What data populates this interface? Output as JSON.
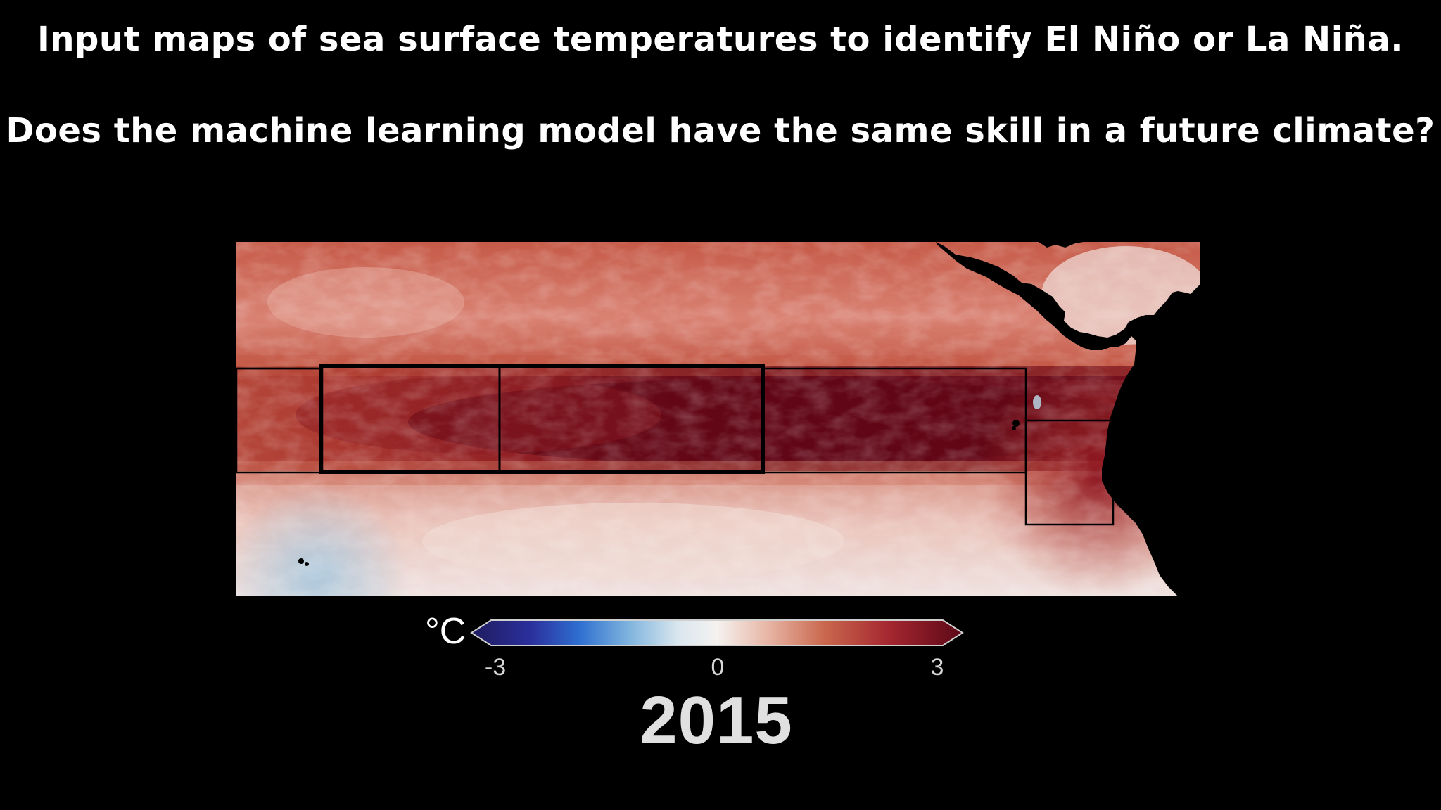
{
  "headline": {
    "line1": "Input maps of sea surface temperatures to identify El Niño or La Niña.",
    "line2": "Does the machine learning model have the same skill in a future climate?"
  },
  "map": {
    "regions": [
      "nino-4",
      "nino-3.4",
      "nino-3",
      "nino-1+2"
    ],
    "land_color": "#000000",
    "anomaly_colors": {
      "strong_warm": "#6a0a18",
      "warm": "#b8402f",
      "mild_warm": "#dd9385",
      "neutral": "#f2e8e6",
      "cool": "#a9c7dc",
      "strong_cool": "#2a2a8a"
    }
  },
  "colorbar": {
    "unit": "°C",
    "ticks": [
      "-3",
      "0",
      "3"
    ],
    "min": -3,
    "max": 3
  },
  "year": "2015"
}
